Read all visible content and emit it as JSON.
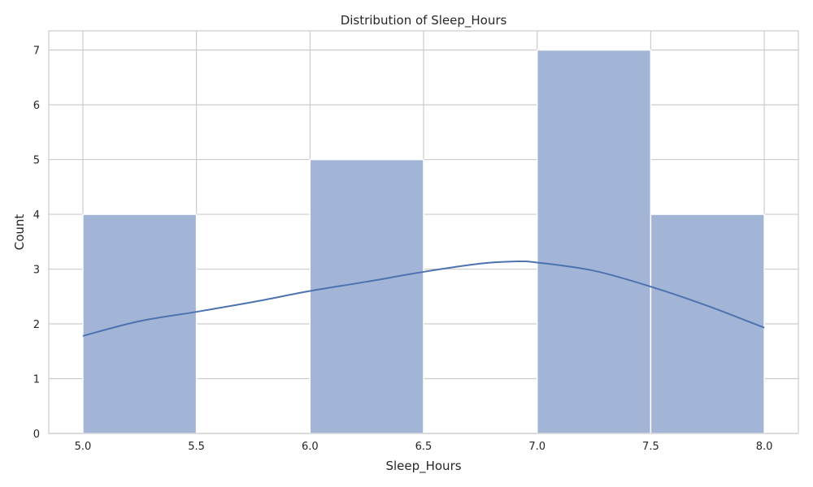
{
  "chart_data": {
    "type": "bar",
    "title": "Distribution of Sleep_Hours",
    "xlabel": "Sleep_Hours",
    "ylabel": "Count",
    "xlim": [
      4.85,
      8.15
    ],
    "ylim": [
      0,
      7.35
    ],
    "grid": true,
    "x_ticks": [
      "5.0",
      "5.5",
      "6.0",
      "6.5",
      "7.0",
      "7.5",
      "8.0"
    ],
    "y_ticks": [
      "0",
      "1",
      "2",
      "3",
      "4",
      "5",
      "6",
      "7"
    ],
    "bins": [
      {
        "start": 5.0,
        "end": 5.5,
        "count": 4
      },
      {
        "start": 5.5,
        "end": 6.0,
        "count": 0
      },
      {
        "start": 6.0,
        "end": 6.5,
        "count": 5
      },
      {
        "start": 6.5,
        "end": 7.0,
        "count": 0
      },
      {
        "start": 7.0,
        "end": 7.5,
        "count": 7
      },
      {
        "start": 7.5,
        "end": 8.0,
        "count": 4
      }
    ],
    "kde": {
      "x": [
        5.0,
        5.25,
        5.5,
        5.75,
        6.0,
        6.25,
        6.5,
        6.75,
        6.9,
        7.0,
        7.25,
        7.5,
        7.75,
        8.0
      ],
      "y": [
        1.78,
        2.05,
        2.22,
        2.4,
        2.6,
        2.77,
        2.95,
        3.1,
        3.14,
        3.12,
        2.97,
        2.68,
        2.33,
        1.93
      ]
    },
    "colors": {
      "bar": "#a3b5d6",
      "line": "#4c72b0",
      "grid": "#cccccc"
    }
  }
}
